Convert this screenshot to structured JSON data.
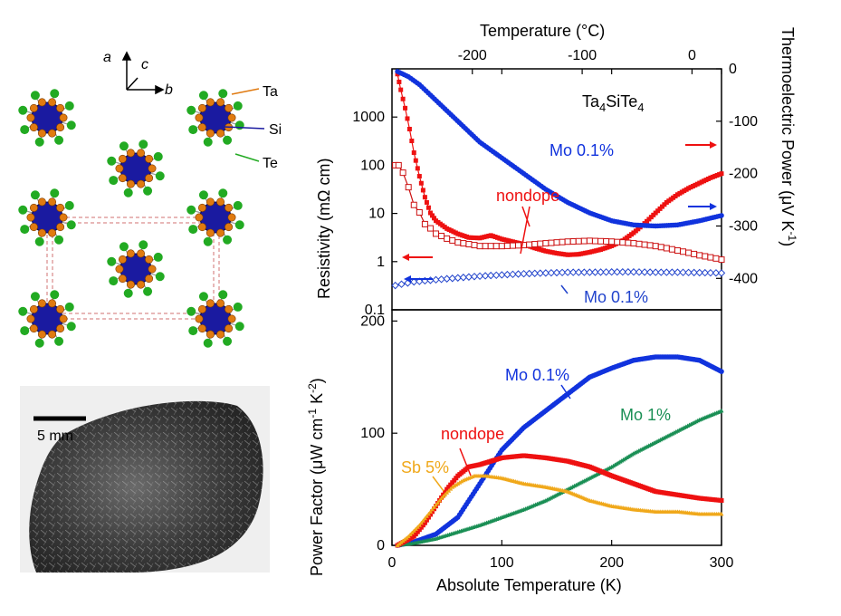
{
  "figure": {
    "crystal_labels": {
      "a": "a",
      "b": "b",
      "c": "c",
      "ta": "Ta",
      "si": "Si",
      "te": "Te"
    },
    "scale_bar_label": "5 mm",
    "colors": {
      "ta": "#e07a10",
      "si": "#1a1aa0",
      "te": "#22aa22",
      "frame": "#e0a0a0"
    }
  },
  "chart_data": [
    {
      "type": "line",
      "panel": "top",
      "compound": "Ta4SiTe4",
      "compound_parts": {
        "base": "Ta",
        "sub1": "4",
        "mid": "SiTe",
        "sub2": "4"
      },
      "top_xlabel": "Temperature  (°C)",
      "top_ticks": [
        "-200",
        "-100",
        "0"
      ],
      "ylabel_left": "Resistivity (mΩ cm)",
      "ylabel_right": "Thermoelectric Power (μV K",
      "ylabel_right_sup": "-1",
      "ylabel_right_close": ")",
      "xlim": [
        0,
        300
      ],
      "ylim_left": [
        0.1,
        10000
      ],
      "yscale_left": "log",
      "yticks_left": [
        "0.1",
        "1",
        "10",
        "100",
        "1000"
      ],
      "ylim_right": [
        -460,
        0
      ],
      "yticks_right": [
        "0",
        "-100",
        "-200",
        "-300",
        "-400"
      ],
      "series": [
        {
          "name": "nondope",
          "quantity": "thermoelectric power",
          "axis": "right",
          "marker": "filled-square",
          "color": "#ee1111",
          "x": [
            5,
            8,
            12,
            16,
            20,
            25,
            30,
            35,
            40,
            50,
            60,
            70,
            80,
            90,
            100,
            110,
            120,
            130,
            140,
            150,
            160,
            170,
            180,
            190,
            200,
            210,
            220,
            230,
            240,
            250,
            260,
            270,
            280,
            290,
            300
          ],
          "y": [
            -10,
            -40,
            -75,
            -115,
            -160,
            -205,
            -245,
            -275,
            -290,
            -305,
            -315,
            -322,
            -323,
            -318,
            -325,
            -330,
            -335,
            -342,
            -348,
            -352,
            -355,
            -354,
            -350,
            -345,
            -338,
            -328,
            -313,
            -295,
            -275,
            -255,
            -240,
            -228,
            -218,
            -208,
            -200
          ]
        },
        {
          "name": "Mo 0.1%",
          "quantity": "thermoelectric power",
          "axis": "right",
          "marker": "filled-circle",
          "color": "#1133dd",
          "x": [
            5,
            15,
            25,
            35,
            50,
            65,
            80,
            100,
            120,
            140,
            160,
            180,
            200,
            220,
            240,
            260,
            280,
            300
          ],
          "y": [
            -5,
            -15,
            -30,
            -50,
            -80,
            -110,
            -140,
            -170,
            -200,
            -230,
            -255,
            -275,
            -290,
            -298,
            -300,
            -298,
            -290,
            -280
          ]
        },
        {
          "name": "nondope",
          "quantity": "resistivity",
          "axis": "left",
          "marker": "open-square",
          "color": "#cc1111",
          "x": [
            3,
            6,
            10,
            15,
            20,
            30,
            40,
            50,
            60,
            80,
            100,
            120,
            140,
            160,
            180,
            200,
            220,
            240,
            260,
            280,
            300
          ],
          "y": [
            100,
            100,
            70,
            35,
            15,
            6,
            3.8,
            3,
            2.5,
            2.1,
            2.1,
            2.2,
            2.4,
            2.6,
            2.7,
            2.6,
            2.4,
            2.1,
            1.7,
            1.35,
            1.1
          ]
        },
        {
          "name": "Mo 0.1%",
          "quantity": "resistivity",
          "axis": "left",
          "marker": "open-diamond",
          "color": "#2244cc",
          "x": [
            3,
            20,
            40,
            60,
            80,
            100,
            120,
            140,
            160,
            180,
            200,
            220,
            240,
            260,
            280,
            300
          ],
          "y": [
            0.32,
            0.38,
            0.42,
            0.46,
            0.5,
            0.53,
            0.56,
            0.58,
            0.6,
            0.6,
            0.61,
            0.61,
            0.6,
            0.6,
            0.59,
            0.58
          ]
        }
      ],
      "annotations": [
        {
          "text": "Mo 0.1%",
          "color": "#1133dd"
        },
        {
          "text": "nondope",
          "color": "#ee1111"
        },
        {
          "text": "Mo 0.1%",
          "color": "#2244cc"
        }
      ]
    },
    {
      "type": "line",
      "panel": "bottom",
      "xlabel": "Absolute Temperature  (K)",
      "xticks": [
        "0",
        "100",
        "200",
        "300"
      ],
      "ylabel": "Power Factor (μW cm",
      "ylabel_sup1": "-1",
      "ylabel_mid": " K",
      "ylabel_sup2": "-2",
      "ylabel_close": ")",
      "xlim": [
        0,
        300
      ],
      "ylim": [
        0,
        210
      ],
      "yticks": [
        "0",
        "100",
        "200"
      ],
      "series": [
        {
          "name": "Mo 0.1%",
          "marker": "filled-circle",
          "color": "#1133dd",
          "x": [
            5,
            20,
            40,
            60,
            80,
            100,
            120,
            140,
            160,
            180,
            200,
            220,
            240,
            260,
            280,
            300
          ],
          "y": [
            0,
            3,
            10,
            25,
            55,
            85,
            105,
            120,
            135,
            150,
            158,
            165,
            168,
            168,
            165,
            155
          ]
        },
        {
          "name": "Mo 1%",
          "marker": "triangle",
          "color": "#1a8f55",
          "x": [
            5,
            20,
            40,
            60,
            80,
            100,
            120,
            140,
            160,
            180,
            200,
            220,
            240,
            260,
            280,
            300
          ],
          "y": [
            0,
            2,
            6,
            12,
            18,
            25,
            32,
            40,
            50,
            60,
            70,
            82,
            92,
            102,
            112,
            120
          ]
        },
        {
          "name": "nondope",
          "marker": "filled-square",
          "color": "#ee1111",
          "x": [
            5,
            20,
            30,
            40,
            50,
            60,
            70,
            80,
            90,
            100,
            120,
            140,
            160,
            180,
            200,
            220,
            240,
            260,
            280,
            300
          ],
          "y": [
            0,
            8,
            20,
            35,
            50,
            62,
            70,
            72,
            75,
            78,
            80,
            78,
            75,
            70,
            62,
            55,
            48,
            45,
            42,
            40
          ]
        },
        {
          "name": "Sb 5%",
          "marker": "triangle",
          "color": "#f0a81a",
          "x": [
            5,
            15,
            25,
            35,
            45,
            55,
            65,
            75,
            85,
            100,
            120,
            140,
            160,
            180,
            200,
            220,
            240,
            260,
            280,
            300
          ],
          "y": [
            0,
            8,
            18,
            30,
            42,
            52,
            58,
            62,
            62,
            60,
            55,
            52,
            48,
            40,
            35,
            32,
            30,
            30,
            28,
            28
          ]
        }
      ],
      "annotations": [
        {
          "text": "Mo 0.1%",
          "color": "#1133dd"
        },
        {
          "text": "Mo 1%",
          "color": "#1a8f55"
        },
        {
          "text": "nondope",
          "color": "#ee1111"
        },
        {
          "text": "Sb 5%",
          "color": "#f0a81a"
        }
      ]
    }
  ]
}
